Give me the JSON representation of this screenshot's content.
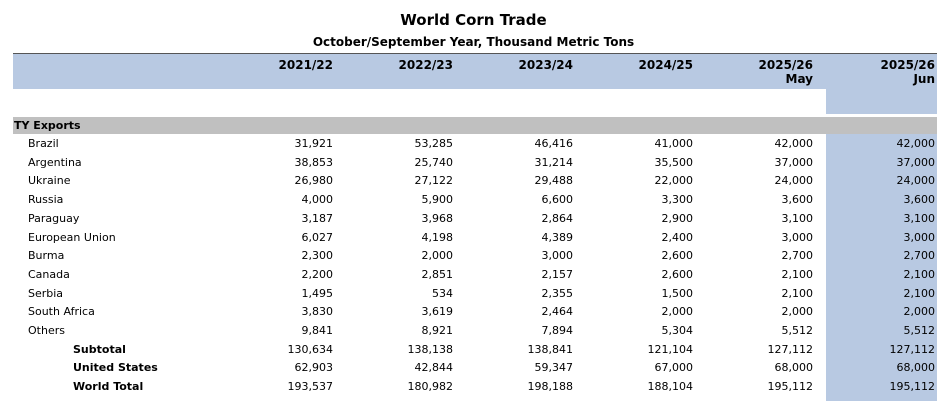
{
  "title": "World Corn Trade",
  "subtitle": "October/September Year, Thousand Metric Tons",
  "columns": [
    {
      "label": "2021/22",
      "sub": ""
    },
    {
      "label": "2022/23",
      "sub": ""
    },
    {
      "label": "2023/24",
      "sub": ""
    },
    {
      "label": "2024/25",
      "sub": ""
    },
    {
      "label": "2025/26",
      "sub": "May"
    },
    {
      "label": "2025/26",
      "sub": "Jun"
    }
  ],
  "highlight_color": "#b8c9e2",
  "section_label": "TY Exports",
  "rows": [
    {
      "label": "Brazil",
      "bold": false,
      "values": [
        "31,921",
        "53,285",
        "46,416",
        "41,000",
        "42,000",
        "42,000"
      ]
    },
    {
      "label": "Argentina",
      "bold": false,
      "values": [
        "38,853",
        "25,740",
        "31,214",
        "35,500",
        "37,000",
        "37,000"
      ]
    },
    {
      "label": "Ukraine",
      "bold": false,
      "values": [
        "26,980",
        "27,122",
        "29,488",
        "22,000",
        "24,000",
        "24,000"
      ]
    },
    {
      "label": "Russia",
      "bold": false,
      "values": [
        "4,000",
        "5,900",
        "6,600",
        "3,300",
        "3,600",
        "3,600"
      ]
    },
    {
      "label": "Paraguay",
      "bold": false,
      "values": [
        "3,187",
        "3,968",
        "2,864",
        "2,900",
        "3,100",
        "3,100"
      ]
    },
    {
      "label": "European Union",
      "bold": false,
      "values": [
        "6,027",
        "4,198",
        "4,389",
        "2,400",
        "3,000",
        "3,000"
      ]
    },
    {
      "label": "Burma",
      "bold": false,
      "values": [
        "2,300",
        "2,000",
        "3,000",
        "2,600",
        "2,700",
        "2,700"
      ]
    },
    {
      "label": "Canada",
      "bold": false,
      "values": [
        "2,200",
        "2,851",
        "2,157",
        "2,600",
        "2,100",
        "2,100"
      ]
    },
    {
      "label": "Serbia",
      "bold": false,
      "values": [
        "1,495",
        "534",
        "2,355",
        "1,500",
        "2,100",
        "2,100"
      ]
    },
    {
      "label": "South Africa",
      "bold": false,
      "values": [
        "3,830",
        "3,619",
        "2,464",
        "2,000",
        "2,000",
        "2,000"
      ]
    },
    {
      "label": "Others",
      "bold": false,
      "values": [
        "9,841",
        "8,921",
        "7,894",
        "5,304",
        "5,512",
        "5,512"
      ]
    },
    {
      "label": "Subtotal",
      "bold": true,
      "values": [
        "130,634",
        "138,138",
        "138,841",
        "121,104",
        "127,112",
        "127,112"
      ]
    },
    {
      "label": "United States",
      "bold": true,
      "values": [
        "62,903",
        "42,844",
        "59,347",
        "67,000",
        "68,000",
        "68,000"
      ]
    },
    {
      "label": "World Total",
      "bold": true,
      "values": [
        "193,537",
        "180,982",
        "198,188",
        "188,104",
        "195,112",
        "195,112"
      ]
    }
  ]
}
